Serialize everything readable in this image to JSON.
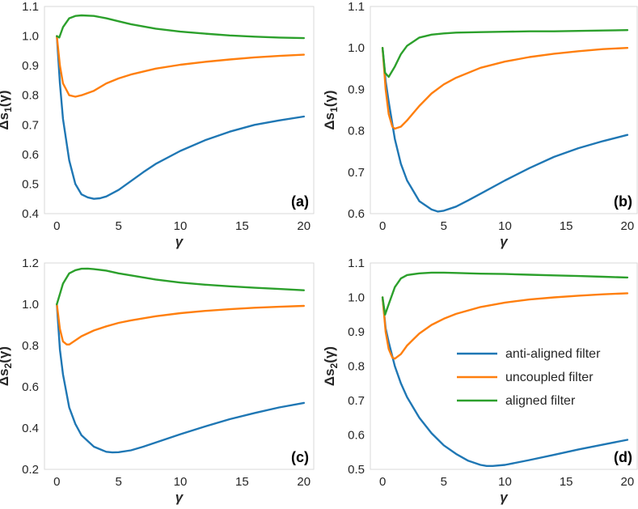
{
  "colors": {
    "anti": "#1f77b4",
    "uncoupled": "#ff7f0e",
    "aligned": "#2ca02c"
  },
  "legend": {
    "placement": "lower-right of panel (d)",
    "entries": [
      {
        "label": "anti-aligned filter",
        "color_key": "anti"
      },
      {
        "label": "uncoupled filter",
        "color_key": "uncoupled"
      },
      {
        "label": "aligned filter",
        "color_key": "aligned"
      }
    ]
  },
  "chart_data": [
    {
      "type": "line",
      "panel_label": "(a)",
      "xlabel": "γ",
      "ylabel_main": "Δs",
      "ylabel_sub": "1",
      "ylabel_tail": "(γ)",
      "xlim": [
        -1,
        20.8
      ],
      "ylim": [
        0.4,
        1.1
      ],
      "xticks": [
        0,
        5,
        10,
        15,
        20
      ],
      "yticks": [
        0.4,
        0.5,
        0.6,
        0.7,
        0.8,
        0.9,
        1.0,
        1.1
      ],
      "ytick_decimals": 1,
      "grid": false,
      "series": [
        {
          "name": "anti-aligned filter",
          "color_key": "anti",
          "x": [
            0,
            0.25,
            0.5,
            1,
            1.5,
            2,
            2.5,
            3,
            3.5,
            4,
            5,
            6,
            7,
            8,
            10,
            12,
            14,
            16,
            18,
            20
          ],
          "y": [
            1.0,
            0.84,
            0.72,
            0.58,
            0.5,
            0.465,
            0.455,
            0.45,
            0.452,
            0.458,
            0.48,
            0.51,
            0.54,
            0.568,
            0.612,
            0.648,
            0.677,
            0.7,
            0.715,
            0.728
          ]
        },
        {
          "name": "uncoupled filter",
          "color_key": "uncoupled",
          "x": [
            0,
            0.25,
            0.5,
            1,
            1.5,
            2,
            3,
            4,
            5,
            6,
            8,
            10,
            12,
            14,
            16,
            18,
            20
          ],
          "y": [
            1.0,
            0.9,
            0.84,
            0.8,
            0.795,
            0.8,
            0.815,
            0.84,
            0.857,
            0.87,
            0.89,
            0.903,
            0.913,
            0.921,
            0.928,
            0.933,
            0.937
          ]
        },
        {
          "name": "aligned filter",
          "color_key": "aligned",
          "x": [
            0,
            0.2,
            0.5,
            1,
            1.5,
            2,
            3,
            4,
            5,
            6,
            8,
            10,
            12,
            14,
            16,
            18,
            20
          ],
          "y": [
            1.0,
            0.995,
            1.03,
            1.06,
            1.068,
            1.07,
            1.068,
            1.06,
            1.05,
            1.04,
            1.025,
            1.015,
            1.008,
            1.002,
            0.998,
            0.995,
            0.993
          ]
        }
      ]
    },
    {
      "type": "line",
      "panel_label": "(b)",
      "xlabel": "γ",
      "ylabel_main": "Δs",
      "ylabel_sub": "1",
      "ylabel_tail": "(γ)",
      "xlim": [
        -1,
        20.8
      ],
      "ylim": [
        0.6,
        1.1
      ],
      "xticks": [
        0,
        5,
        10,
        15,
        20
      ],
      "yticks": [
        0.6,
        0.7,
        0.8,
        0.9,
        1.0,
        1.1
      ],
      "ytick_decimals": 1,
      "grid": false,
      "series": [
        {
          "name": "anti-aligned filter",
          "color_key": "anti",
          "x": [
            0,
            0.25,
            0.5,
            1,
            1.5,
            2,
            3,
            4,
            4.5,
            5,
            6,
            7,
            8,
            10,
            12,
            14,
            16,
            18,
            20
          ],
          "y": [
            1.0,
            0.92,
            0.87,
            0.78,
            0.72,
            0.68,
            0.63,
            0.61,
            0.605,
            0.607,
            0.617,
            0.632,
            0.648,
            0.68,
            0.71,
            0.737,
            0.758,
            0.775,
            0.79
          ]
        },
        {
          "name": "uncoupled filter",
          "color_key": "uncoupled",
          "x": [
            0,
            0.25,
            0.5,
            0.8,
            1,
            1.5,
            2,
            3,
            4,
            5,
            6,
            8,
            10,
            12,
            14,
            16,
            18,
            20
          ],
          "y": [
            1.0,
            0.9,
            0.84,
            0.81,
            0.805,
            0.81,
            0.825,
            0.86,
            0.89,
            0.912,
            0.928,
            0.952,
            0.967,
            0.978,
            0.986,
            0.992,
            0.997,
            1.0
          ]
        },
        {
          "name": "aligned filter",
          "color_key": "aligned",
          "x": [
            0,
            0.2,
            0.5,
            1,
            1.5,
            2,
            3,
            4,
            5,
            6,
            8,
            10,
            12,
            14,
            16,
            18,
            20
          ],
          "y": [
            1.0,
            0.94,
            0.93,
            0.955,
            0.985,
            1.005,
            1.025,
            1.032,
            1.035,
            1.037,
            1.038,
            1.039,
            1.04,
            1.04,
            1.041,
            1.042,
            1.043
          ]
        }
      ]
    },
    {
      "type": "line",
      "panel_label": "(c)",
      "xlabel": "γ",
      "ylabel_main": "Δs",
      "ylabel_sub": "2",
      "ylabel_tail": "(γ)",
      "xlim": [
        -1,
        20.8
      ],
      "ylim": [
        0.2,
        1.2
      ],
      "xticks": [
        0,
        5,
        10,
        15,
        20
      ],
      "yticks": [
        0.2,
        0.4,
        0.6,
        0.8,
        1.0,
        1.2
      ],
      "ytick_decimals": 1,
      "grid": false,
      "series": [
        {
          "name": "anti-aligned filter",
          "color_key": "anti",
          "x": [
            0,
            0.25,
            0.5,
            1,
            1.5,
            2,
            3,
            4,
            4.5,
            5,
            6,
            7,
            8,
            10,
            12,
            14,
            16,
            18,
            20
          ],
          "y": [
            1.0,
            0.78,
            0.66,
            0.5,
            0.42,
            0.365,
            0.31,
            0.285,
            0.282,
            0.283,
            0.292,
            0.31,
            0.33,
            0.37,
            0.408,
            0.443,
            0.473,
            0.5,
            0.522
          ]
        },
        {
          "name": "uncoupled filter",
          "color_key": "uncoupled",
          "x": [
            0,
            0.25,
            0.5,
            0.8,
            1,
            1.5,
            2,
            3,
            4,
            5,
            6,
            8,
            10,
            12,
            14,
            16,
            18,
            20
          ],
          "y": [
            1.0,
            0.88,
            0.82,
            0.805,
            0.805,
            0.825,
            0.845,
            0.873,
            0.893,
            0.91,
            0.922,
            0.942,
            0.957,
            0.968,
            0.976,
            0.983,
            0.988,
            0.992
          ]
        },
        {
          "name": "aligned filter",
          "color_key": "aligned",
          "x": [
            0,
            0.25,
            0.5,
            1,
            1.5,
            2,
            2.5,
            3,
            4,
            5,
            6,
            8,
            10,
            12,
            14,
            16,
            18,
            20
          ],
          "y": [
            1.0,
            1.05,
            1.1,
            1.15,
            1.165,
            1.172,
            1.173,
            1.17,
            1.163,
            1.15,
            1.14,
            1.12,
            1.105,
            1.095,
            1.087,
            1.08,
            1.074,
            1.068
          ]
        }
      ]
    },
    {
      "type": "line",
      "panel_label": "(d)",
      "xlabel": "γ",
      "ylabel_main": "Δs",
      "ylabel_sub": "2",
      "ylabel_tail": "(γ)",
      "xlim": [
        -1,
        20.8
      ],
      "ylim": [
        0.5,
        1.1
      ],
      "xticks": [
        0,
        5,
        10,
        15,
        20
      ],
      "yticks": [
        0.5,
        0.6,
        0.7,
        0.8,
        0.9,
        1.0,
        1.1
      ],
      "ytick_decimals": 1,
      "grid": false,
      "series": [
        {
          "name": "anti-aligned filter",
          "color_key": "anti",
          "x": [
            0,
            0.25,
            0.5,
            1,
            1.5,
            2,
            3,
            4,
            5,
            6,
            7,
            8,
            8.5,
            9,
            10,
            12,
            14,
            16,
            18,
            20
          ],
          "y": [
            1.0,
            0.91,
            0.87,
            0.8,
            0.75,
            0.71,
            0.65,
            0.605,
            0.57,
            0.545,
            0.525,
            0.513,
            0.51,
            0.51,
            0.513,
            0.527,
            0.542,
            0.558,
            0.572,
            0.586
          ]
        },
        {
          "name": "uncoupled filter",
          "color_key": "uncoupled",
          "x": [
            0,
            0.25,
            0.5,
            0.8,
            1,
            1.5,
            2,
            3,
            4,
            5,
            6,
            8,
            10,
            12,
            14,
            16,
            18,
            20
          ],
          "y": [
            1.0,
            0.9,
            0.85,
            0.825,
            0.822,
            0.835,
            0.86,
            0.895,
            0.92,
            0.938,
            0.952,
            0.972,
            0.985,
            0.994,
            1.0,
            1.005,
            1.009,
            1.012
          ]
        },
        {
          "name": "aligned filter",
          "color_key": "aligned",
          "x": [
            0,
            0.2,
            0.5,
            1,
            1.5,
            2,
            3,
            4,
            5,
            6,
            8,
            10,
            12,
            14,
            16,
            18,
            20
          ],
          "y": [
            1.0,
            0.95,
            0.98,
            1.03,
            1.055,
            1.065,
            1.07,
            1.072,
            1.072,
            1.071,
            1.069,
            1.068,
            1.066,
            1.064,
            1.062,
            1.06,
            1.058
          ]
        }
      ]
    }
  ]
}
